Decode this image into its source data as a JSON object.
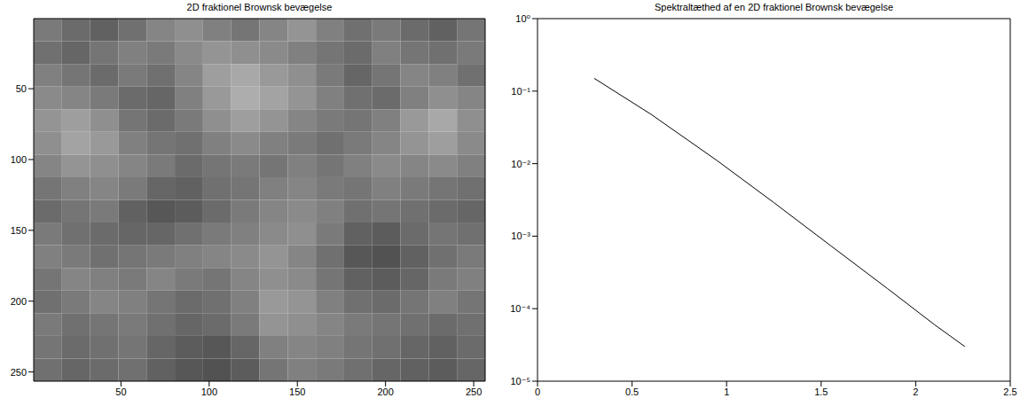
{
  "chart_data": [
    {
      "type": "heatmap",
      "title": "2D fraktionel Brownsk bevægelse",
      "xlim": [
        0.5,
        256.5
      ],
      "ylim": [
        256.5,
        0.5
      ],
      "xticks": [
        50,
        100,
        150,
        200,
        250
      ],
      "yticks": [
        50,
        100,
        150,
        200,
        250
      ],
      "cell_edges": [
        0.5,
        16.5,
        32.5,
        48.5,
        64.5,
        80.5,
        96.5,
        112.5,
        128.5,
        144.5,
        160.5,
        176.5,
        192.5,
        208.5,
        224.5,
        240.5,
        256.5
      ],
      "clim": [
        0,
        100
      ],
      "cells": [
        [
          48,
          42,
          38,
          44,
          52,
          56,
          50,
          46,
          52,
          58,
          50,
          44,
          48,
          42,
          38,
          46
        ],
        [
          44,
          40,
          46,
          50,
          48,
          54,
          58,
          56,
          54,
          50,
          46,
          42,
          50,
          46,
          44,
          48
        ],
        [
          50,
          46,
          42,
          48,
          44,
          52,
          62,
          66,
          60,
          56,
          48,
          40,
          46,
          52,
          50,
          44
        ],
        [
          54,
          52,
          48,
          42,
          40,
          50,
          60,
          68,
          64,
          58,
          50,
          44,
          42,
          50,
          56,
          52
        ],
        [
          58,
          62,
          56,
          46,
          42,
          48,
          56,
          62,
          58,
          52,
          48,
          46,
          50,
          60,
          66,
          56
        ],
        [
          56,
          64,
          60,
          50,
          46,
          44,
          50,
          54,
          50,
          48,
          44,
          48,
          52,
          58,
          62,
          54
        ],
        [
          52,
          58,
          56,
          52,
          48,
          42,
          46,
          48,
          46,
          50,
          46,
          50,
          54,
          52,
          54,
          50
        ],
        [
          46,
          50,
          52,
          48,
          40,
          38,
          44,
          46,
          50,
          52,
          48,
          46,
          50,
          48,
          46,
          44
        ],
        [
          42,
          46,
          48,
          38,
          34,
          36,
          42,
          48,
          52,
          54,
          50,
          44,
          46,
          44,
          42,
          40
        ],
        [
          48,
          44,
          42,
          40,
          40,
          44,
          48,
          50,
          54,
          56,
          48,
          38,
          36,
          42,
          46,
          44
        ],
        [
          50,
          48,
          44,
          46,
          48,
          50,
          52,
          54,
          58,
          52,
          44,
          34,
          32,
          38,
          44,
          48
        ],
        [
          46,
          52,
          50,
          48,
          52,
          48,
          46,
          52,
          56,
          54,
          46,
          38,
          36,
          40,
          48,
          50
        ],
        [
          44,
          48,
          52,
          50,
          46,
          42,
          44,
          50,
          60,
          58,
          50,
          44,
          42,
          46,
          50,
          46
        ],
        [
          48,
          44,
          46,
          48,
          44,
          40,
          42,
          48,
          58,
          56,
          52,
          48,
          46,
          44,
          42,
          44
        ],
        [
          46,
          42,
          44,
          46,
          40,
          36,
          34,
          40,
          50,
          52,
          50,
          46,
          44,
          40,
          38,
          42
        ],
        [
          44,
          40,
          42,
          44,
          38,
          34,
          32,
          36,
          46,
          50,
          48,
          44,
          40,
          38,
          36,
          40
        ]
      ]
    },
    {
      "type": "line",
      "title": "Spektraltæthed af en 2D fraktionel Brownsk bevægelse",
      "x": [
        0.3,
        0.6,
        0.95,
        1.25,
        1.55,
        1.85,
        2.1,
        2.26
      ],
      "values": [
        0.15,
        0.048,
        0.011,
        0.0029,
        0.00074,
        0.00019,
        6e-05,
        3e-05
      ],
      "color": "#000000",
      "log": "y",
      "xlim": [
        0,
        2.5
      ],
      "xticks": [
        0,
        0.5,
        1,
        1.5,
        2,
        2.5
      ],
      "ylim": [
        1e-05,
        1
      ],
      "yticks": [
        {
          "value": 1e-05,
          "label": "10⁻⁵"
        },
        {
          "value": 0.0001,
          "label": "10⁻⁴"
        },
        {
          "value": 0.001,
          "label": "10⁻³"
        },
        {
          "value": 0.01,
          "label": "10⁻²"
        },
        {
          "value": 0.1,
          "label": "10⁻¹"
        },
        {
          "value": 1,
          "label": "10⁰"
        }
      ]
    }
  ]
}
